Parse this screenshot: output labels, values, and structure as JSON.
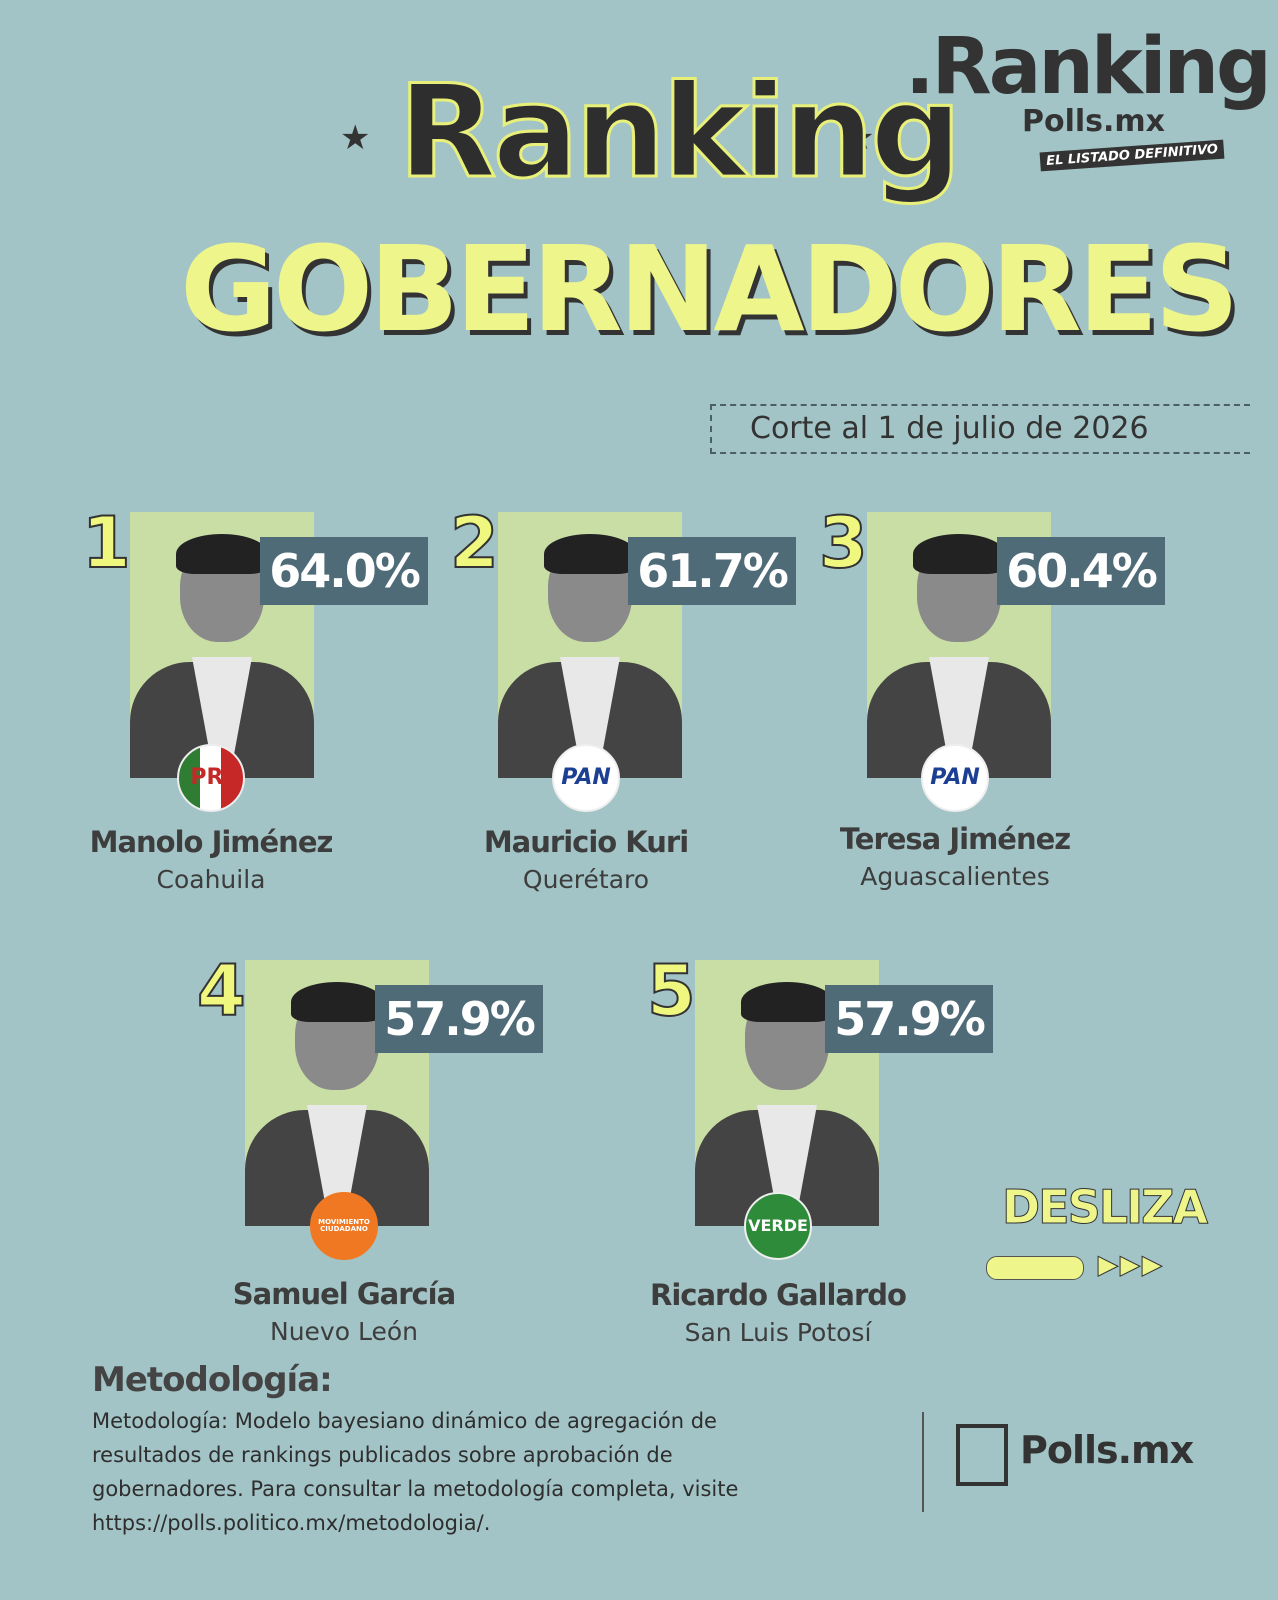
{
  "header": {
    "title": "Ranking",
    "subtitle": "GOBERNADORES",
    "date": "Corte al 1 de julio de 2026"
  },
  "brand": {
    "name": ".Ranking",
    "site": "Polls.mx",
    "tagline": "EL LISTADO DEFINITIVO"
  },
  "cards": [
    {
      "rank": "1",
      "percent": "64.0%",
      "party": "PRI",
      "name": "Manolo Jiménez",
      "state": "Coahuila"
    },
    {
      "rank": "2",
      "percent": "61.7%",
      "party": "PAN",
      "name": "Mauricio Kuri",
      "state": "Querétaro"
    },
    {
      "rank": "3",
      "percent": "60.4%",
      "party": "PAN",
      "name": "Teresa Jiménez",
      "state": "Aguascalientes"
    },
    {
      "rank": "4",
      "percent": "57.9%",
      "party": "MOVIMIENTO CIUDADANO",
      "name": "Samuel García",
      "state": "Nuevo León"
    },
    {
      "rank": "5",
      "percent": "57.9%",
      "party": "VERDE",
      "name": "Ricardo Gallardo",
      "state": "San Luis Potosí"
    }
  ],
  "swipe": "DESLIZA",
  "methodology": {
    "title": "Metodología:",
    "text": "Metodología: Modelo bayesiano dinámico de agregación de resultados de rankings publicados sobre aprobación de gobernadores. Para consultar la metodología completa, visite https://polls.politico.mx/metodologia/."
  },
  "footer": {
    "logo": "Polls.mx"
  }
}
